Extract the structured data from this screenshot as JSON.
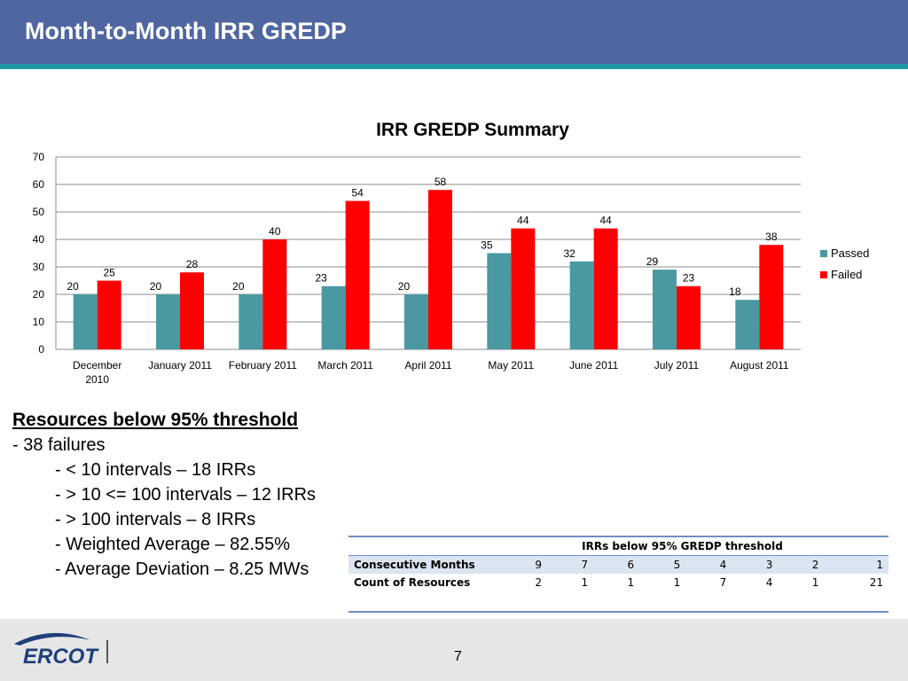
{
  "header": {
    "title": "Month-to-Month IRR GREDP"
  },
  "chart_data": {
    "type": "bar",
    "title": "IRR GREDP Summary",
    "categories": [
      [
        "December",
        "2010"
      ],
      [
        "January 2011"
      ],
      [
        "February 2011"
      ],
      [
        "March 2011"
      ],
      [
        "April 2011"
      ],
      [
        "May 2011"
      ],
      [
        "June 2011"
      ],
      [
        "July 2011"
      ],
      [
        "August 2011"
      ]
    ],
    "series": [
      {
        "name": "Passed",
        "color": "#4a98a2",
        "values": [
          20,
          20,
          20,
          23,
          20,
          35,
          32,
          29,
          18
        ]
      },
      {
        "name": "Failed",
        "color": "#ff0000",
        "values": [
          25,
          28,
          40,
          54,
          58,
          44,
          44,
          23,
          38
        ]
      }
    ],
    "ylim": [
      0,
      70
    ],
    "yticks": [
      0,
      10,
      20,
      30,
      40,
      50,
      60,
      70
    ],
    "grid": true,
    "legend": "right"
  },
  "resources": {
    "heading": "Resources below 95% threshold",
    "line1": "- 38 failures",
    "items": [
      "- < 10 intervals – 18 IRRs",
      "- > 10 <= 100 intervals – 12 IRRs",
      "- > 100 intervals – 8 IRRs",
      "- Weighted Average – 82.55%",
      "- Average Deviation – 8.25 MWs"
    ]
  },
  "table": {
    "caption": "IRRs below 95% GREDP threshold",
    "rows": [
      {
        "label": "Consecutive Months",
        "values": [
          "9",
          "7",
          "6",
          "5",
          "4",
          "3",
          "2",
          "1"
        ]
      },
      {
        "label": "Count of Resources",
        "values": [
          "2",
          "1",
          "1",
          "1",
          "7",
          "4",
          "1",
          "21"
        ]
      }
    ]
  },
  "footer": {
    "logo": "ERCOT",
    "page": "7"
  }
}
